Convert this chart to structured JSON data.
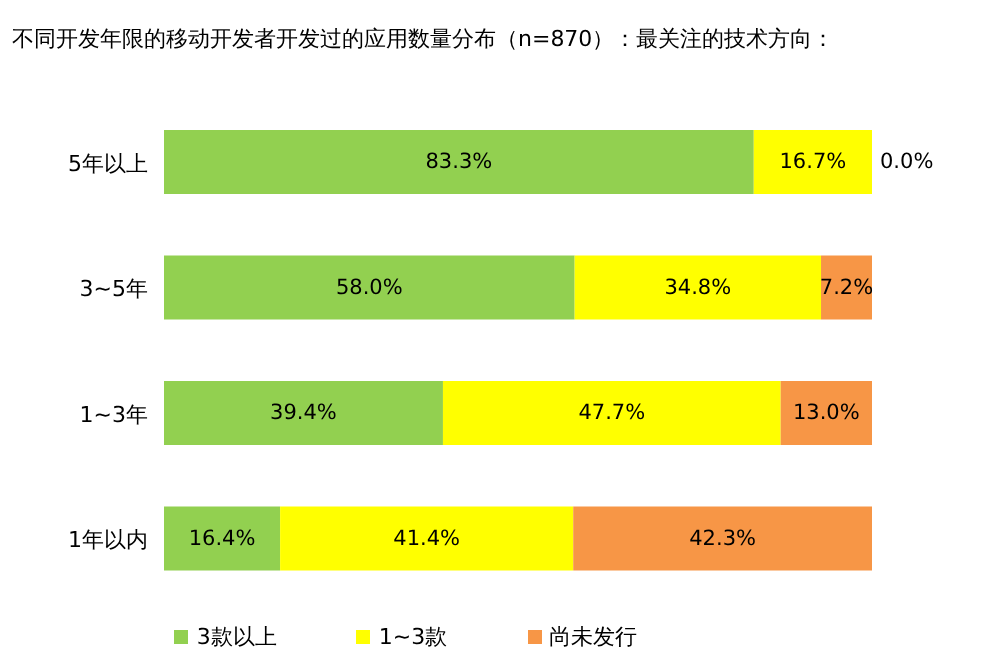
{
  "chart_data": {
    "type": "bar",
    "orientation": "horizontal",
    "stacked": true,
    "title": "不同开发年限的移动开发者开发过的应用数量分布（n=870）：最关注的技术方向：",
    "categories": [
      "5年以上",
      "3~5年",
      "1~3年",
      "1年以内"
    ],
    "xlim": [
      0,
      100
    ],
    "tick_labels": "y",
    "grid": false,
    "legend": "bottom",
    "series": [
      {
        "name": "3款以上",
        "color": "#92d050",
        "values": [
          83.3,
          58.0,
          39.4,
          16.4
        ],
        "value_labels": [
          "83.3%",
          "58.0%",
          "39.4%",
          "16.4%"
        ]
      },
      {
        "name": "1~3款",
        "color": "#ffff00",
        "values": [
          16.7,
          34.8,
          47.7,
          41.4
        ],
        "value_labels": [
          "16.7%",
          "34.8%",
          "47.7%",
          "41.4%"
        ]
      },
      {
        "name": "尚未发行",
        "color": "#f79646",
        "values": [
          0.0,
          7.2,
          13.0,
          42.3
        ],
        "value_labels": [
          "0.0%",
          "7.2%",
          "13.0%",
          "42.3%"
        ]
      }
    ]
  }
}
